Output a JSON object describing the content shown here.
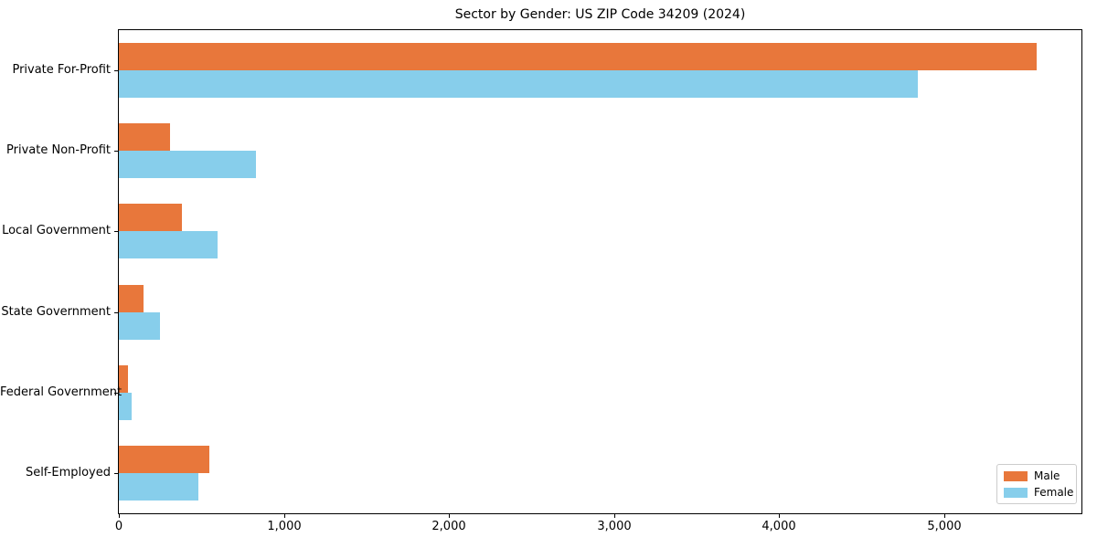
{
  "title": "Sector by Gender: US ZIP Code 34209 (2024)",
  "chart_data": {
    "type": "bar",
    "orientation": "horizontal",
    "title": "Sector by Gender: US ZIP Code 34209 (2024)",
    "categories": [
      "Private For-Profit",
      "Private Non-Profit",
      "Local Government",
      "State Government",
      "Federal Government",
      "Self-Employed"
    ],
    "series": [
      {
        "name": "Male",
        "color": "#E8773B",
        "values": [
          5560,
          310,
          380,
          150,
          55,
          548
        ]
      },
      {
        "name": "Female",
        "color": "#87CEEB",
        "values": [
          4840,
          830,
          600,
          250,
          75,
          482
        ]
      }
    ],
    "xlabel": "",
    "ylabel": "",
    "xlim": [
      0,
      5830
    ],
    "xticks": [
      0,
      1000,
      2000,
      3000,
      4000,
      5000
    ],
    "xtick_labels": [
      "0",
      "1,000",
      "2,000",
      "3,000",
      "4,000",
      "5,000"
    ],
    "grid": false,
    "legend_position": "lower right"
  },
  "colors": {
    "male": "#E8773B",
    "female": "#87CEEB",
    "spine": "#000000",
    "legend_border": "#cccccc",
    "background": "#ffffff"
  }
}
